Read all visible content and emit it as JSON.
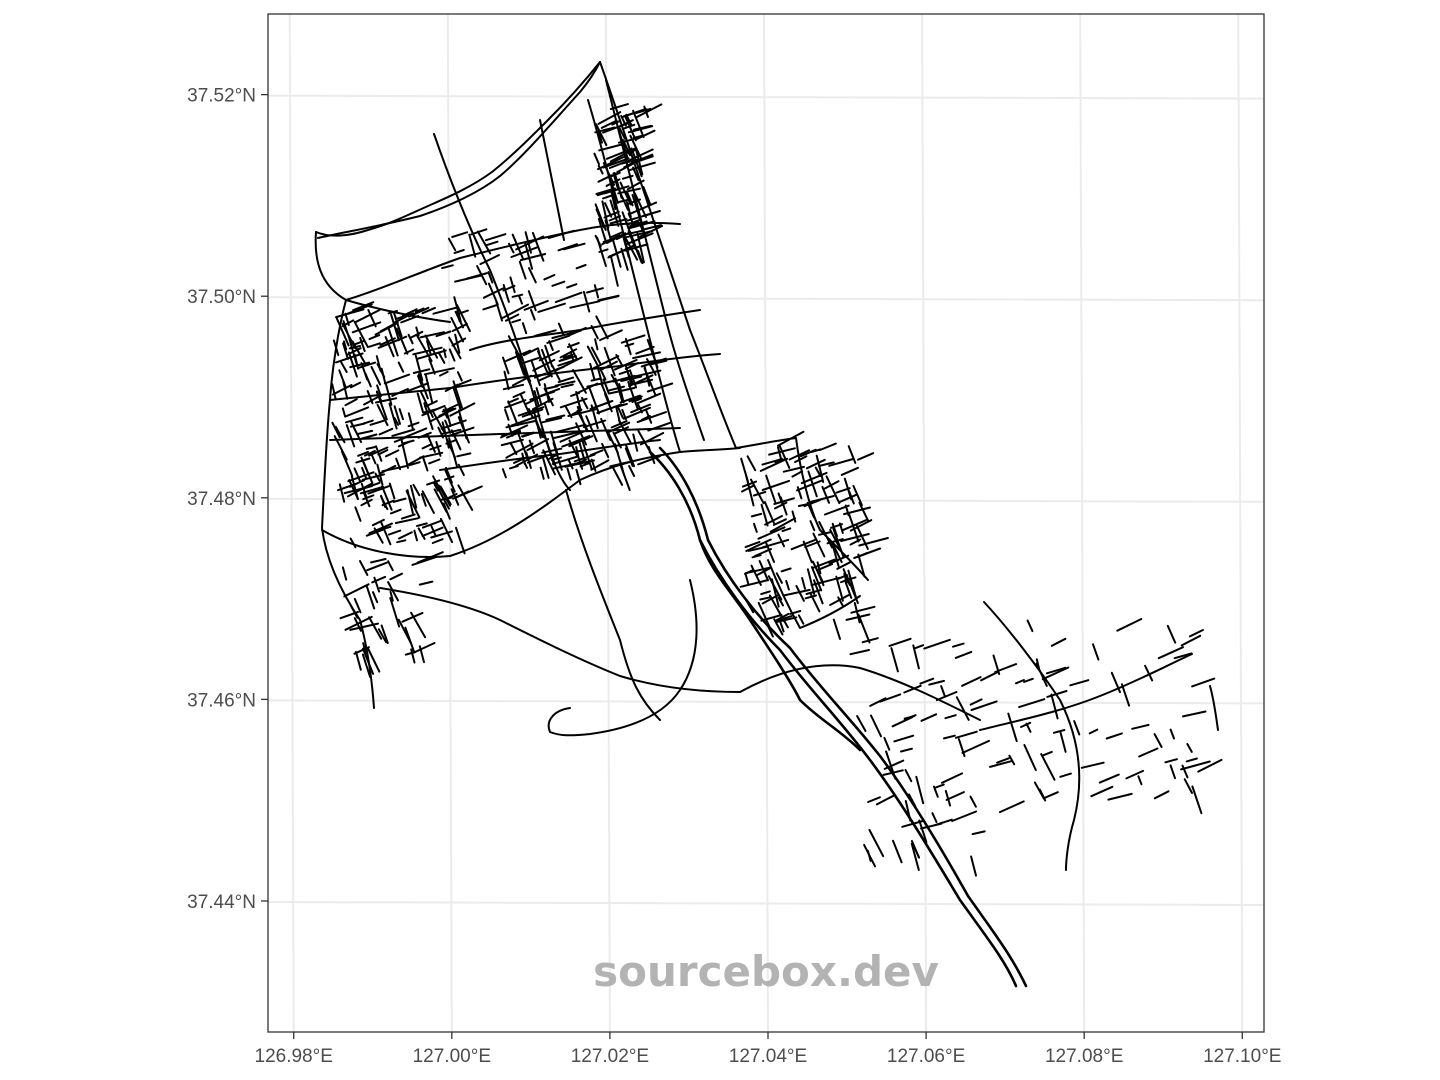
{
  "chart_data": {
    "type": "map",
    "title": "",
    "xlabel": "",
    "ylabel": "",
    "xlim": [
      126.977,
      127.103
    ],
    "ylim": [
      37.427,
      37.528
    ],
    "x_ticks": [
      {
        "value": 126.98,
        "label": "126.98°E"
      },
      {
        "value": 127.0,
        "label": "127.00°E"
      },
      {
        "value": 127.02,
        "label": "127.02°E"
      },
      {
        "value": 127.04,
        "label": "127.04°E"
      },
      {
        "value": 127.06,
        "label": "127.06°E"
      },
      {
        "value": 127.08,
        "label": "127.08°E"
      },
      {
        "value": 127.1,
        "label": "127.10°E"
      }
    ],
    "y_ticks": [
      {
        "value": 37.44,
        "label": "37.44°N"
      },
      {
        "value": 37.46,
        "label": "37.46°N"
      },
      {
        "value": 37.48,
        "label": "37.48°N"
      },
      {
        "value": 37.5,
        "label": "37.50°N"
      },
      {
        "value": 37.52,
        "label": "37.52°N"
      }
    ],
    "grid": true,
    "layer": "road network (street lines)",
    "watermark": "sourcebox.dev"
  },
  "colors": {
    "roads": "#000000",
    "grid": "#ebebeb",
    "border": "#333333",
    "watermark": "#b3b3b3"
  }
}
